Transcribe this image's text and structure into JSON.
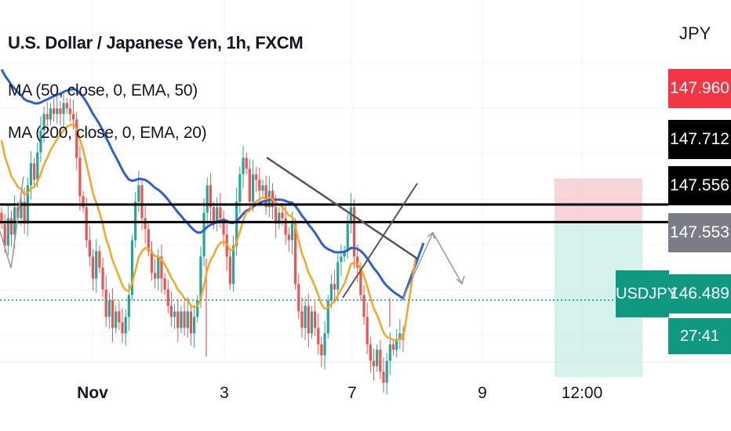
{
  "header": {
    "title": "U.S. Dollar / Japanese Yen, 1h, FXCM",
    "indicator_1": "MA (50, close, 0, EMA, 50)",
    "indicator_2": "MA (200, close, 0, EMA, 20)",
    "currency": "JPY"
  },
  "price_labels": {
    "stop": "147.960",
    "ma_fast": "147.712",
    "ma_slow": "147.556",
    "level": "147.553",
    "last": "146.489",
    "symbol": "USDJPY",
    "countdown": "27:41"
  },
  "colors": {
    "up": "#26a69a",
    "down": "#ef5350",
    "ema_fast": "#f5a623",
    "ema_slow": "#2e5fd6",
    "stop_zone": "#f7c6cb",
    "target_zone": "#cdeee6",
    "last_price": "#0f9980",
    "trendline": "#555555"
  },
  "chart_data": {
    "type": "candlestick",
    "symbol": "USDJPY",
    "timeframe": "1h",
    "x_tick_labels": [
      "Nov",
      "3",
      "7",
      "9",
      "12:00"
    ],
    "y_range": [
      145.7,
      148.6
    ],
    "candle_closes": [
      147.55,
      147.35,
      147.6,
      147.45,
      147.7,
      147.6,
      147.75,
      147.55,
      147.9,
      148.1,
      147.95,
      148.2,
      148.4,
      148.55,
      148.5,
      148.6,
      148.55,
      148.6,
      148.55,
      148.65,
      148.6,
      148.55,
      148.5,
      148.15,
      147.8,
      147.7,
      147.4,
      147.25,
      147.05,
      147.3,
      147.15,
      146.95,
      146.7,
      146.85,
      146.6,
      146.75,
      146.65,
      146.55,
      146.7,
      146.9,
      147.4,
      147.75,
      147.9,
      147.6,
      147.5,
      147.3,
      147.1,
      147.05,
      147.25,
      147.05,
      146.95,
      146.8,
      146.7,
      146.75,
      146.6,
      146.75,
      146.6,
      146.75,
      146.55,
      146.7,
      146.85,
      147.25,
      147.65,
      147.9,
      147.7,
      147.55,
      147.7,
      147.6,
      147.45,
      147.25,
      147.0,
      147.35,
      147.75,
      148.0,
      148.15,
      148.05,
      147.75,
      148.0,
      147.95,
      147.85,
      147.9,
      147.7,
      147.85,
      147.7,
      147.55,
      147.65,
      147.6,
      147.45,
      147.4,
      147.55,
      147.0,
      146.75,
      146.6,
      146.8,
      146.55,
      146.75,
      146.6,
      146.45,
      146.35,
      146.55,
      146.85,
      147.0,
      146.95,
      147.2,
      147.25,
      147.3,
      147.55,
      147.7,
      147.25,
      147.15,
      146.9,
      146.7,
      146.45,
      146.3,
      146.25,
      146.4,
      146.2,
      146.1,
      146.3,
      146.45,
      146.4,
      146.5,
      146.55,
      146.49
    ],
    "ema_fast_label": "147.712",
    "ema_slow_label": "147.556",
    "horizontal_levels": [
      147.71,
      147.55
    ],
    "last_price": 146.489,
    "position": {
      "entry": 147.55,
      "stop": 147.96,
      "target": 146.15
    }
  }
}
